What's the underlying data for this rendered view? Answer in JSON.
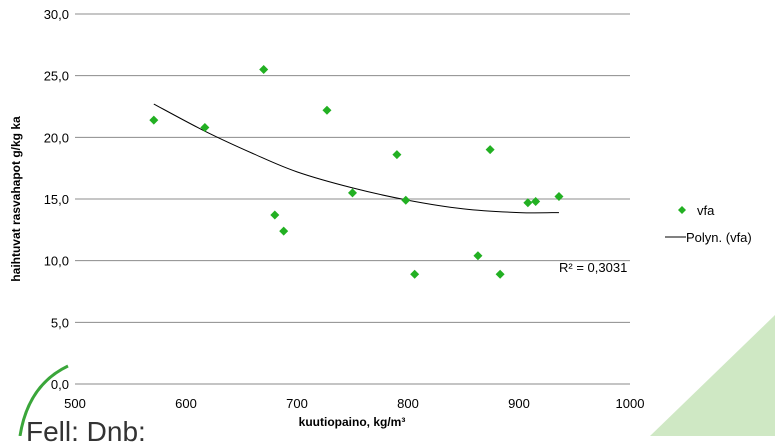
{
  "chart_data": {
    "type": "scatter",
    "title": "",
    "xlabel": "kuutiopaino, kg/m³",
    "ylabel": "haihtuvat rasvahapot g/kg ka",
    "xlim": [
      500,
      1000
    ],
    "ylim": [
      0,
      30
    ],
    "xticks": [
      "500",
      "600",
      "700",
      "800",
      "900",
      "1000"
    ],
    "yticks": [
      "0,0",
      "5,0",
      "10,0",
      "15,0",
      "20,0",
      "25,0",
      "30,0"
    ],
    "grid": "horizontal",
    "legend_position": "right",
    "series": [
      {
        "name": "vfa",
        "color": "#22b022",
        "marker": "diamond",
        "points": [
          [
            571,
            21.4
          ],
          [
            617,
            20.8
          ],
          [
            670,
            25.5
          ],
          [
            680,
            13.7
          ],
          [
            688,
            12.4
          ],
          [
            727,
            22.2
          ],
          [
            750,
            15.5
          ],
          [
            790,
            18.6
          ],
          [
            798,
            14.9
          ],
          [
            806,
            8.9
          ],
          [
            863,
            10.4
          ],
          [
            874,
            19.0
          ],
          [
            883,
            8.9
          ],
          [
            908,
            14.7
          ],
          [
            915,
            14.8
          ],
          [
            936,
            15.2
          ]
        ]
      }
    ],
    "trendline": {
      "name": "Polyn. (vfa)",
      "color": "#000000",
      "x_range": [
        571,
        936
      ],
      "points": [
        [
          571,
          22.7
        ],
        [
          617,
          20.5
        ],
        [
          660,
          18.7
        ],
        [
          700,
          17.2
        ],
        [
          750,
          15.9
        ],
        [
          800,
          14.9
        ],
        [
          850,
          14.2
        ],
        [
          900,
          13.9
        ],
        [
          936,
          13.9
        ]
      ]
    },
    "annotation": "R² = 0,3031"
  },
  "logo": {
    "text": "Fell: Dnb:"
  }
}
